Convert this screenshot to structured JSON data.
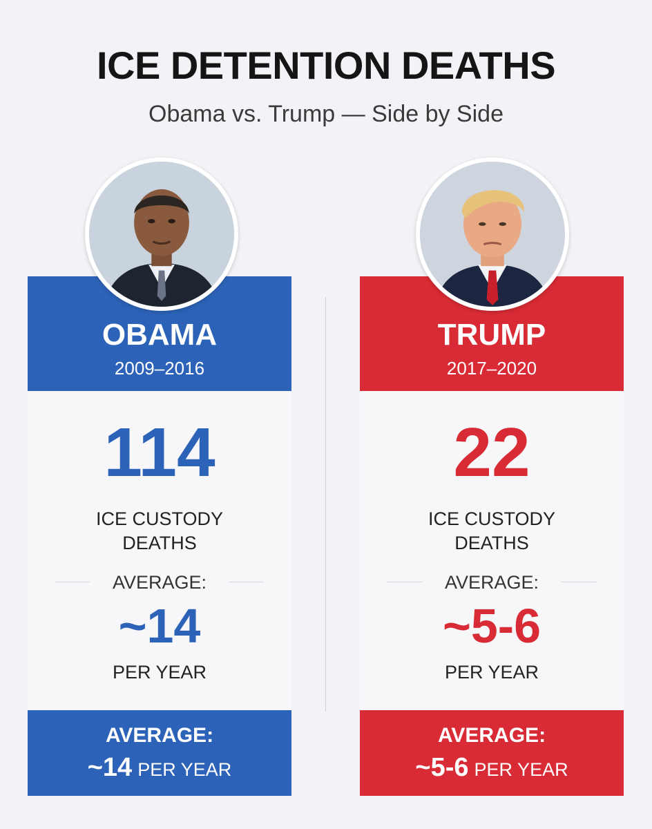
{
  "title": "ICE DETENTION DEATHS",
  "subtitle": "Obama vs. Trump — Side by Side",
  "left": {
    "name": "OBAMA",
    "years": "2009–2016",
    "total_deaths": "114",
    "deaths_label_1": "ICE CUSTODY",
    "deaths_label_2": "DEATHS",
    "average_label": "AVERAGE:",
    "average_value": "~14",
    "per_year": "PER YEAR",
    "footer_label": "AVERAGE:",
    "footer_value": "~14",
    "footer_unit": "PER YEAR",
    "portrait_icon": "obama-portrait-photo"
  },
  "right": {
    "name": "TRUMP",
    "years": "2017–2020",
    "total_deaths": "22",
    "deaths_label_1": "ICE CUSTODY",
    "deaths_label_2": "DEATHS",
    "average_label": "AVERAGE:",
    "average_value": "~5-6",
    "per_year": "PER YEAR",
    "footer_label": "AVERAGE:",
    "footer_value": "~5-6",
    "footer_unit": "PER YEAR",
    "portrait_icon": "trump-portrait-photo"
  },
  "colors": {
    "blue": "#2c63b8",
    "red": "#d92b35",
    "background": "#f3f3f7"
  }
}
